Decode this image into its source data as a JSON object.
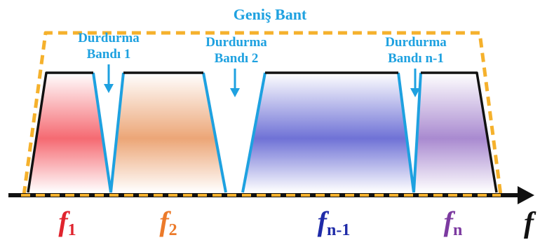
{
  "title": "Geniş Bant",
  "stopbands": [
    {
      "line1": "Durdurma",
      "line2": "Bandı 1"
    },
    {
      "line1": "Durdurma",
      "line2": "Bandı 2"
    },
    {
      "line1": "Durdurma",
      "line2": "Bandı n-1"
    }
  ],
  "bands": [
    {
      "label": "f",
      "sub": "1",
      "color": "#e0242e"
    },
    {
      "label": "f",
      "sub": "2",
      "color": "#ec7a2a"
    },
    {
      "label": "f",
      "sub": "n-1",
      "color": "#1f2ba8"
    },
    {
      "label": "f",
      "sub": "n",
      "color": "#7c3aa0"
    }
  ],
  "axis_label": "f",
  "colors": {
    "accent": "#1ea1e0",
    "dashed_outline": "#f5b12c",
    "axis": "#111111"
  }
}
